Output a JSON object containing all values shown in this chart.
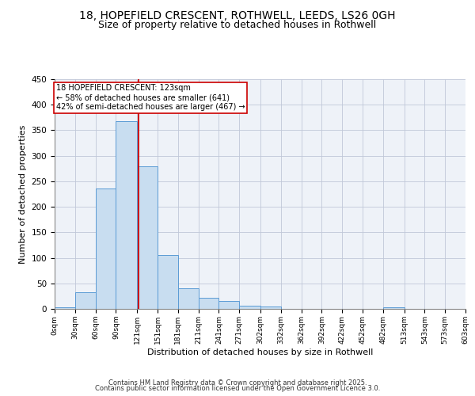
{
  "title1": "18, HOPEFIELD CRESCENT, ROTHWELL, LEEDS, LS26 0GH",
  "title2": "Size of property relative to detached houses in Rothwell",
  "xlabel": "Distribution of detached houses by size in Rothwell",
  "ylabel": "Number of detached properties",
  "bar_edges": [
    0,
    30,
    60,
    90,
    121,
    151,
    181,
    211,
    241,
    271,
    302,
    332,
    362,
    392,
    422,
    452,
    482,
    513,
    543,
    573,
    603
  ],
  "bar_heights": [
    3,
    32,
    236,
    368,
    280,
    106,
    41,
    21,
    16,
    6,
    4,
    0,
    0,
    0,
    0,
    0,
    3,
    0,
    0,
    0
  ],
  "bar_color": "#c8ddf0",
  "bar_edgecolor": "#5b9bd5",
  "grid_color": "#c0c8d8",
  "bg_color": "#eef2f8",
  "red_line_x": 123,
  "red_line_color": "#cc0000",
  "annotation_text": "18 HOPEFIELD CRESCENT: 123sqm\n← 58% of detached houses are smaller (641)\n42% of semi-detached houses are larger (467) →",
  "annotation_box_color": "#cc0000",
  "ylim": [
    0,
    450
  ],
  "yticks": [
    0,
    50,
    100,
    150,
    200,
    250,
    300,
    350,
    400,
    450
  ],
  "xtick_labels": [
    "0sqm",
    "30sqm",
    "60sqm",
    "90sqm",
    "121sqm",
    "151sqm",
    "181sqm",
    "211sqm",
    "241sqm",
    "271sqm",
    "302sqm",
    "332sqm",
    "362sqm",
    "392sqm",
    "422sqm",
    "452sqm",
    "482sqm",
    "513sqm",
    "543sqm",
    "573sqm",
    "603sqm"
  ],
  "footer_line1": "Contains HM Land Registry data © Crown copyright and database right 2025.",
  "footer_line2": "Contains public sector information licensed under the Open Government Licence 3.0.",
  "title1_fontsize": 10,
  "title2_fontsize": 9,
  "xlabel_fontsize": 8,
  "ylabel_fontsize": 8,
  "footer_fontsize": 6,
  "annot_fontsize": 7
}
